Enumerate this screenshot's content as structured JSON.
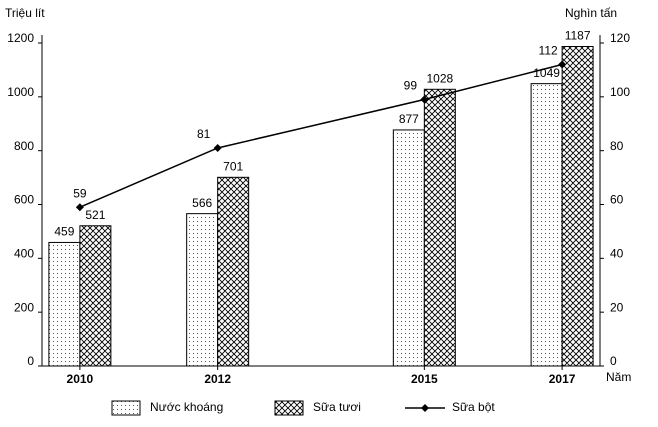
{
  "chart_data": {
    "type": "bar",
    "y_label": "Triệu lít",
    "y2_label": "Nghìn tấn",
    "x_label": "Năm",
    "x": [
      2010,
      2012,
      2015,
      2017
    ],
    "xlim": [
      2009.45,
      2017.55
    ],
    "xticks": [
      2010,
      2012,
      2015,
      2017
    ],
    "series": [
      {
        "name": "Nước khoáng",
        "pattern": "dots",
        "values": [
          459,
          566,
          877,
          1049
        ]
      },
      {
        "name": "Sữa tươi",
        "pattern": "crosshatch",
        "values": [
          521,
          701,
          1028,
          1187
        ]
      },
      {
        "name": "Sữa bột",
        "type": "line",
        "axis": "y2",
        "color": "#000000",
        "values": [
          59,
          81,
          99,
          112
        ]
      }
    ],
    "ylim": [
      0,
      1200
    ],
    "yticks": [
      0,
      200,
      400,
      600,
      800,
      1000,
      1200
    ],
    "y2lim": [
      0,
      120
    ],
    "y2ticks": [
      0,
      20,
      40,
      60,
      80,
      100,
      120
    ],
    "legend": "bottom"
  }
}
